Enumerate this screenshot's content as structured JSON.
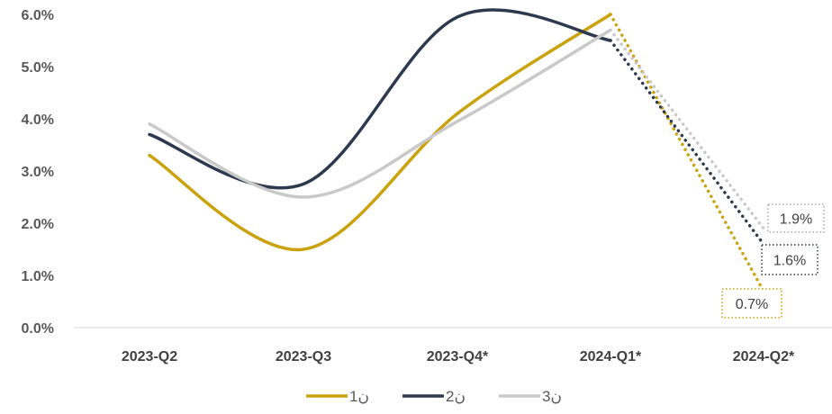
{
  "chart_data": {
    "type": "line",
    "title": "",
    "xlabel": "",
    "ylabel": "",
    "categories": [
      "2023-Q2",
      "2023-Q3",
      "2023-Q4*",
      "2024-Q1*",
      "2024-Q2*"
    ],
    "y_ticks": [
      "0.0%",
      "1.0%",
      "2.0%",
      "3.0%",
      "4.0%",
      "5.0%",
      "6.0%"
    ],
    "ylim": [
      0,
      6
    ],
    "y_unit": "%",
    "grid": false,
    "legend_position": "bottom",
    "forecast_from_index": 3,
    "series": [
      {
        "name": "ن1",
        "color": "#C9A20C",
        "values": [
          3.3,
          1.5,
          4.1,
          6.0,
          0.7
        ],
        "end_label": "0.7%"
      },
      {
        "name": "ن2",
        "color": "#2D3A4E",
        "values": [
          3.7,
          2.75,
          5.95,
          5.5,
          1.6
        ],
        "end_label": "1.6%"
      },
      {
        "name": "ن3",
        "color": "#C9C9C9",
        "values": [
          3.9,
          2.5,
          3.95,
          5.7,
          1.9
        ],
        "end_label": "1.9%"
      }
    ]
  }
}
